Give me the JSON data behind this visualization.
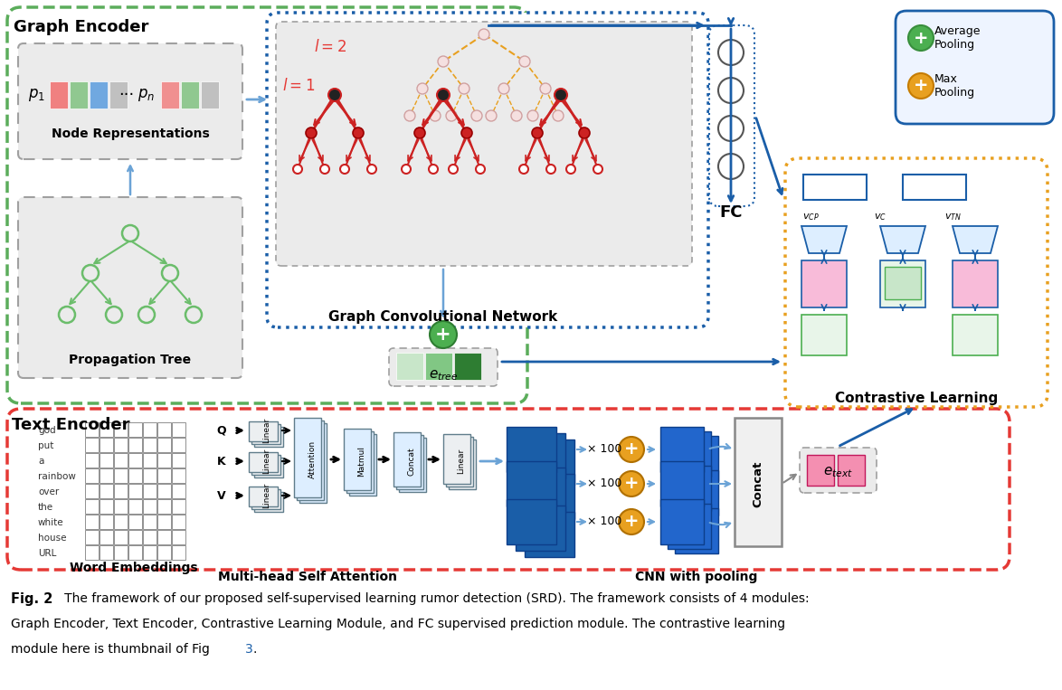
{
  "fig_caption_bold": "Fig. 2",
  "fig_caption_line1": "   The framework of our proposed self-supervised learning rumor detection (SRD). The framework consists of 4 modules:",
  "fig_caption_line2": "Graph Encoder, Text Encoder, Contrastive Learning Module, and FC supervised prediction module. The contrastive learning",
  "fig_caption_line3": "module here is thumbnail of Fig ",
  "fig_caption_fig3": "3",
  "fig_caption_line3_end": ".",
  "graph_encoder_label": "Graph Encoder",
  "text_encoder_label": "Text Encoder",
  "gcn_label": "Graph Convolutional Network",
  "contrastive_label": "Contrastive Learning",
  "cnn_label": "CNN with pooling",
  "mhsa_label": "Multi-head Self Attention",
  "node_rep_label": "Node Representations",
  "prop_tree_label": "Propagation Tree",
  "word_emb_label": "Word Embeddings",
  "fc_label": "FC",
  "avg_pool_label": "Average\nPooling",
  "max_pool_label": "Max\nPooling",
  "words": [
    "god",
    "put",
    "a",
    "rainbow",
    "over",
    "the",
    "white",
    "house",
    "URL"
  ],
  "x100_labels": [
    "× 100",
    "× 100",
    "× 100"
  ],
  "green_color": "#5BAD5B",
  "red_color": "#E53935",
  "blue_color": "#1A5EA8",
  "blue_light": "#6BA3D6",
  "yellow_color": "#E8A020",
  "gray_color": "#A0A0A0",
  "light_gray": "#EBEBEB",
  "tree_green": "#6BBD6B",
  "red_tree": "#CC2222",
  "pink_node": "#F0A0A0"
}
